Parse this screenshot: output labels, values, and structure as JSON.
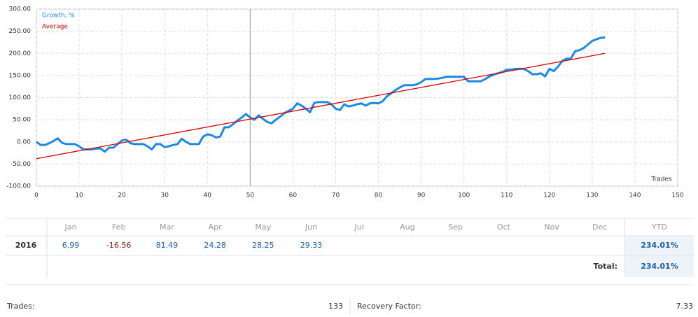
{
  "chart_data": {
    "type": "line",
    "x_label": "Trades",
    "x": [
      0,
      1,
      2,
      3,
      4,
      5,
      6,
      7,
      8,
      9,
      10,
      11,
      12,
      13,
      14,
      15,
      16,
      17,
      18,
      19,
      20,
      21,
      22,
      23,
      24,
      25,
      26,
      27,
      28,
      29,
      30,
      31,
      32,
      33,
      34,
      35,
      36,
      37,
      38,
      39,
      40,
      41,
      42,
      43,
      44,
      45,
      46,
      47,
      48,
      49,
      50,
      51,
      52,
      53,
      54,
      55,
      56,
      57,
      58,
      59,
      60,
      61,
      62,
      63,
      64,
      65,
      66,
      67,
      68,
      69,
      70,
      71,
      72,
      73,
      74,
      75,
      76,
      77,
      78,
      79,
      80,
      81,
      82,
      83,
      84,
      85,
      86,
      87,
      88,
      89,
      90,
      91,
      92,
      93,
      94,
      95,
      96,
      97,
      98,
      99,
      100,
      101,
      102,
      103,
      104,
      105,
      106,
      107,
      108,
      109,
      110,
      111,
      112,
      113,
      114,
      115,
      116,
      117,
      118,
      119,
      120,
      121,
      122,
      123,
      124,
      125,
      126,
      127,
      128,
      129,
      130,
      131,
      132,
      133
    ],
    "series": [
      {
        "name": "Growth, %",
        "color": "#1e88e5",
        "values": [
          0,
          -7,
          -7,
          -3,
          2,
          8,
          -2,
          -5,
          -5,
          -5,
          -10,
          -17,
          -17,
          -17,
          -15,
          -15,
          -22,
          -13,
          -13,
          -5,
          3,
          5,
          -3,
          -5,
          -5,
          -5,
          -10,
          -17,
          -5,
          -5,
          -12,
          -10,
          -7,
          -5,
          7,
          0,
          -5,
          -5,
          -5,
          12,
          17,
          15,
          10,
          12,
          33,
          33,
          40,
          48,
          55,
          63,
          55,
          50,
          60,
          52,
          45,
          42,
          50,
          57,
          65,
          70,
          75,
          87,
          82,
          75,
          67,
          88,
          90,
          90,
          90,
          85,
          75,
          72,
          85,
          80,
          82,
          85,
          87,
          82,
          87,
          88,
          87,
          92,
          103,
          110,
          117,
          123,
          128,
          128,
          128,
          130,
          135,
          142,
          142,
          142,
          143,
          145,
          147,
          147,
          147,
          147,
          147,
          137,
          137,
          137,
          137,
          142,
          148,
          152,
          155,
          158,
          163,
          163,
          165,
          165,
          165,
          160,
          153,
          153,
          155,
          148,
          165,
          160,
          170,
          183,
          188,
          188,
          205,
          207,
          212,
          220,
          228,
          232,
          235,
          236
        ]
      },
      {
        "name": "Average",
        "color": "#d50000",
        "x": [
          0,
          133
        ],
        "values": [
          -38,
          200
        ]
      }
    ],
    "xlim": [
      0,
      150
    ],
    "xticks": [
      0,
      10,
      20,
      30,
      40,
      50,
      60,
      70,
      80,
      90,
      100,
      110,
      120,
      130,
      140,
      150
    ],
    "ylim": [
      -100,
      300
    ],
    "yticks": [
      {
        "value": -100,
        "label": "-100.00"
      },
      {
        "value": -50,
        "label": "-50.00"
      },
      {
        "value": 0,
        "label": "0.00"
      },
      {
        "value": 50,
        "label": "50.00"
      },
      {
        "value": 100,
        "label": "100.00"
      },
      {
        "value": 150,
        "label": "150.00"
      },
      {
        "value": 200,
        "label": "200.00"
      },
      {
        "value": 250,
        "label": "250.00"
      },
      {
        "value": 300,
        "label": "300.00"
      }
    ],
    "grid": true,
    "vline_x": 50
  },
  "table": {
    "months": [
      "Jan",
      "Feb",
      "Mar",
      "Apr",
      "May",
      "Jun",
      "Jul",
      "Aug",
      "Sep",
      "Oct",
      "Nov",
      "Dec"
    ],
    "ytd_header": "YTD",
    "rows": [
      {
        "year": "2016",
        "values": [
          6.99,
          -16.56,
          81.49,
          24.28,
          28.25,
          29.33
        ],
        "ytd": "234.01%"
      }
    ],
    "total_label": "Total:",
    "total": "234.01%"
  },
  "stats": [
    {
      "label": "Trades:",
      "value": "133"
    },
    {
      "label": "Recovery Factor:",
      "value": "7.33"
    }
  ]
}
